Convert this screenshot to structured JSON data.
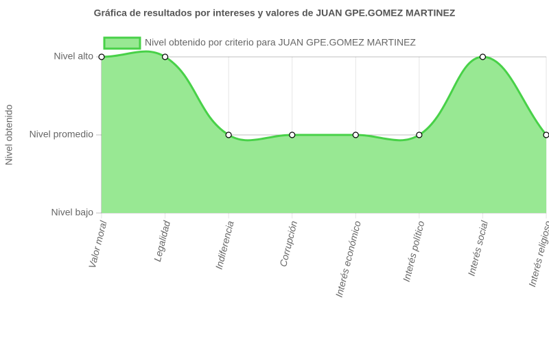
{
  "chart_data": {
    "type": "area",
    "title": "Gráfica de resultados por intereses y valores de JUAN GPE.GOMEZ MARTINEZ",
    "y_label": "Nivel obtenido",
    "categories": [
      "Valor moral",
      "Legalidad",
      "Indiferencia",
      "Corrupción",
      "Interés económico",
      "Interés político",
      "Interés social",
      "Interés religioso"
    ],
    "series": [
      {
        "name": "Nivel obtenido por criterio para JUAN GPE.GOMEZ MARTINEZ",
        "color": "#48d148",
        "fill": "#98e893",
        "values": [
          3,
          3,
          2,
          2,
          2,
          2,
          3,
          2
        ]
      }
    ],
    "ylim": [
      1,
      3
    ],
    "yticks": [
      {
        "value": 1,
        "label": "Nivel bajo"
      },
      {
        "value": 2,
        "label": "Nivel promedio"
      },
      {
        "value": 3,
        "label": "Nivel alto"
      }
    ],
    "grid": true,
    "legend": "top"
  }
}
